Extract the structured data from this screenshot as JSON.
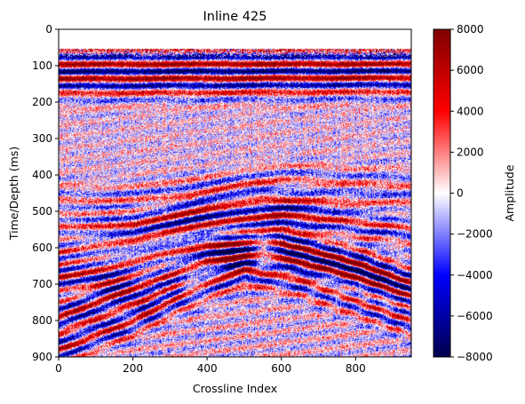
{
  "chart_data": {
    "type": "heatmap",
    "title": "Inline 425",
    "xlabel": "Crossline Index",
    "ylabel": "Time/Depth (ms)",
    "xlim": [
      0,
      950
    ],
    "ylim": [
      900,
      0
    ],
    "x_ticks": [
      0,
      200,
      400,
      600,
      800
    ],
    "y_ticks": [
      0,
      100,
      200,
      300,
      400,
      500,
      600,
      700,
      800,
      900
    ],
    "colormap": "seismic",
    "colorbar": {
      "label": "Amplitude",
      "range": [
        -8000,
        8000
      ],
      "ticks": [
        8000,
        6000,
        4000,
        2000,
        0,
        -2000,
        -4000,
        -6000,
        -8000
      ],
      "tick_labels": [
        "8000",
        "6000",
        "4000",
        "2000",
        "0",
        "−2000",
        "−4000",
        "−6000",
        "−8000"
      ]
    },
    "data_start_y": 52,
    "horizons": [
      {
        "points": [
          [
            0,
            95
          ],
          [
            950,
            95
          ]
        ],
        "strength": 6500
      },
      {
        "points": [
          [
            0,
            155
          ],
          [
            950,
            150
          ]
        ],
        "strength": -5000
      },
      {
        "points": [
          [
            0,
            470
          ],
          [
            200,
            470
          ],
          [
            350,
            455
          ],
          [
            500,
            420
          ],
          [
            600,
            410
          ],
          [
            800,
            420
          ],
          [
            950,
            425
          ]
        ],
        "strength": 3500
      },
      {
        "points": [
          [
            0,
            540
          ],
          [
            200,
            535
          ],
          [
            400,
            490
          ],
          [
            550,
            465
          ],
          [
            700,
            470
          ],
          [
            950,
            480
          ]
        ],
        "strength": 4500
      },
      {
        "points": [
          [
            0,
            610
          ],
          [
            200,
            580
          ],
          [
            400,
            535
          ],
          [
            600,
            510
          ],
          [
            800,
            530
          ],
          [
            950,
            545
          ]
        ],
        "strength": 5500
      },
      {
        "points": [
          [
            0,
            680
          ],
          [
            200,
            640
          ],
          [
            400,
            590
          ],
          [
            600,
            590
          ],
          [
            800,
            640
          ],
          [
            950,
            700
          ]
        ],
        "strength": 6500
      },
      {
        "points": [
          [
            0,
            790
          ],
          [
            200,
            710
          ],
          [
            400,
            640
          ],
          [
            550,
            610
          ],
          [
            700,
            650
          ],
          [
            950,
            730
          ]
        ],
        "strength": 7000
      },
      {
        "points": [
          [
            0,
            880
          ],
          [
            200,
            800
          ],
          [
            350,
            720
          ],
          [
            500,
            660
          ],
          [
            650,
            690
          ],
          [
            950,
            800
          ]
        ],
        "strength": 6000
      }
    ],
    "colors": {
      "negative": "#00004c",
      "mid_negative": "#0000ff",
      "zero": "#ffffff",
      "mid_positive": "#ff0000",
      "positive": "#800000"
    }
  }
}
